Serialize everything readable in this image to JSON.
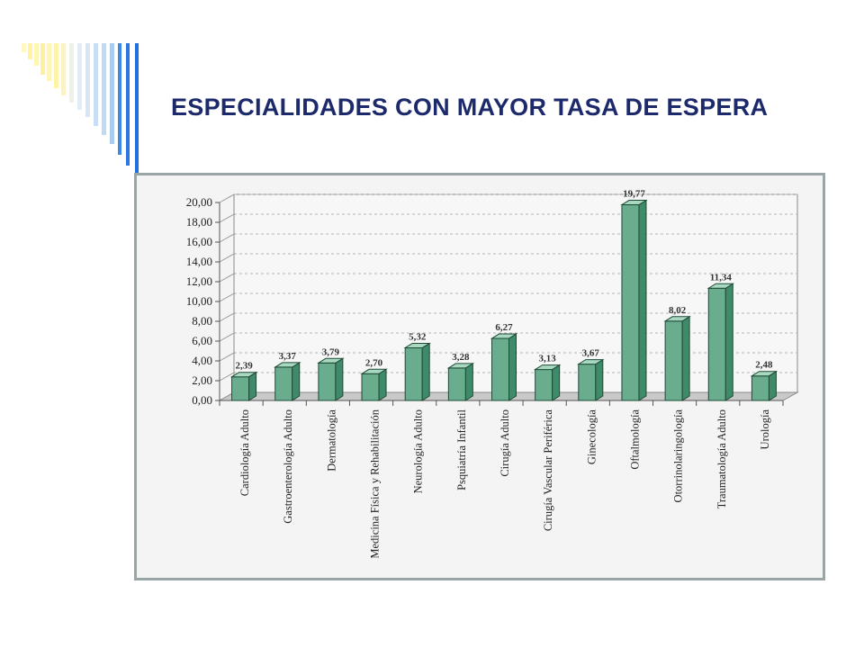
{
  "slide": {
    "title": "ESPECIALIDADES CON MAYOR TASA DE ESPERA"
  },
  "colors": {
    "title": "#1c2a6b",
    "bar_front": "#69ad8e",
    "bar_side": "#3f8a68",
    "bar_top": "#a8d8c0",
    "accent_blue": "#1f6fdc",
    "accent_yellow": "#fff3a0"
  },
  "chart_data": {
    "type": "bar",
    "style": "3d-column",
    "title": "",
    "xlabel": "",
    "ylabel": "",
    "ylim": [
      0,
      20
    ],
    "yticks": [
      "0,00",
      "2,00",
      "4,00",
      "6,00",
      "8,00",
      "10,00",
      "12,00",
      "14,00",
      "16,00",
      "18,00",
      "20,00"
    ],
    "grid": true,
    "legend": "none",
    "categories": [
      "Cardiología Adulto",
      "Gastroenterología Adulto",
      "Dermatología",
      "Medicina Física y Rehabilitación",
      "Neurología Adulto",
      "Psquiatría Infantil",
      "Cirugía Adulto",
      "Cirugía Vascular Periférica",
      "Ginecología",
      "Oftalmología",
      "Otorrinolaringología",
      "Traumatología Adulto",
      "Urología"
    ],
    "values": [
      2.39,
      3.37,
      3.79,
      2.7,
      5.32,
      3.28,
      6.27,
      3.13,
      3.67,
      19.77,
      8.02,
      11.34,
      2.48
    ],
    "value_labels": [
      "2,39",
      "3,37",
      "3,79",
      "2,70",
      "5,32",
      "3,28",
      "6,27",
      "3,13",
      "3,67",
      "19,77",
      "8,02",
      "11,34",
      "2,48"
    ]
  }
}
